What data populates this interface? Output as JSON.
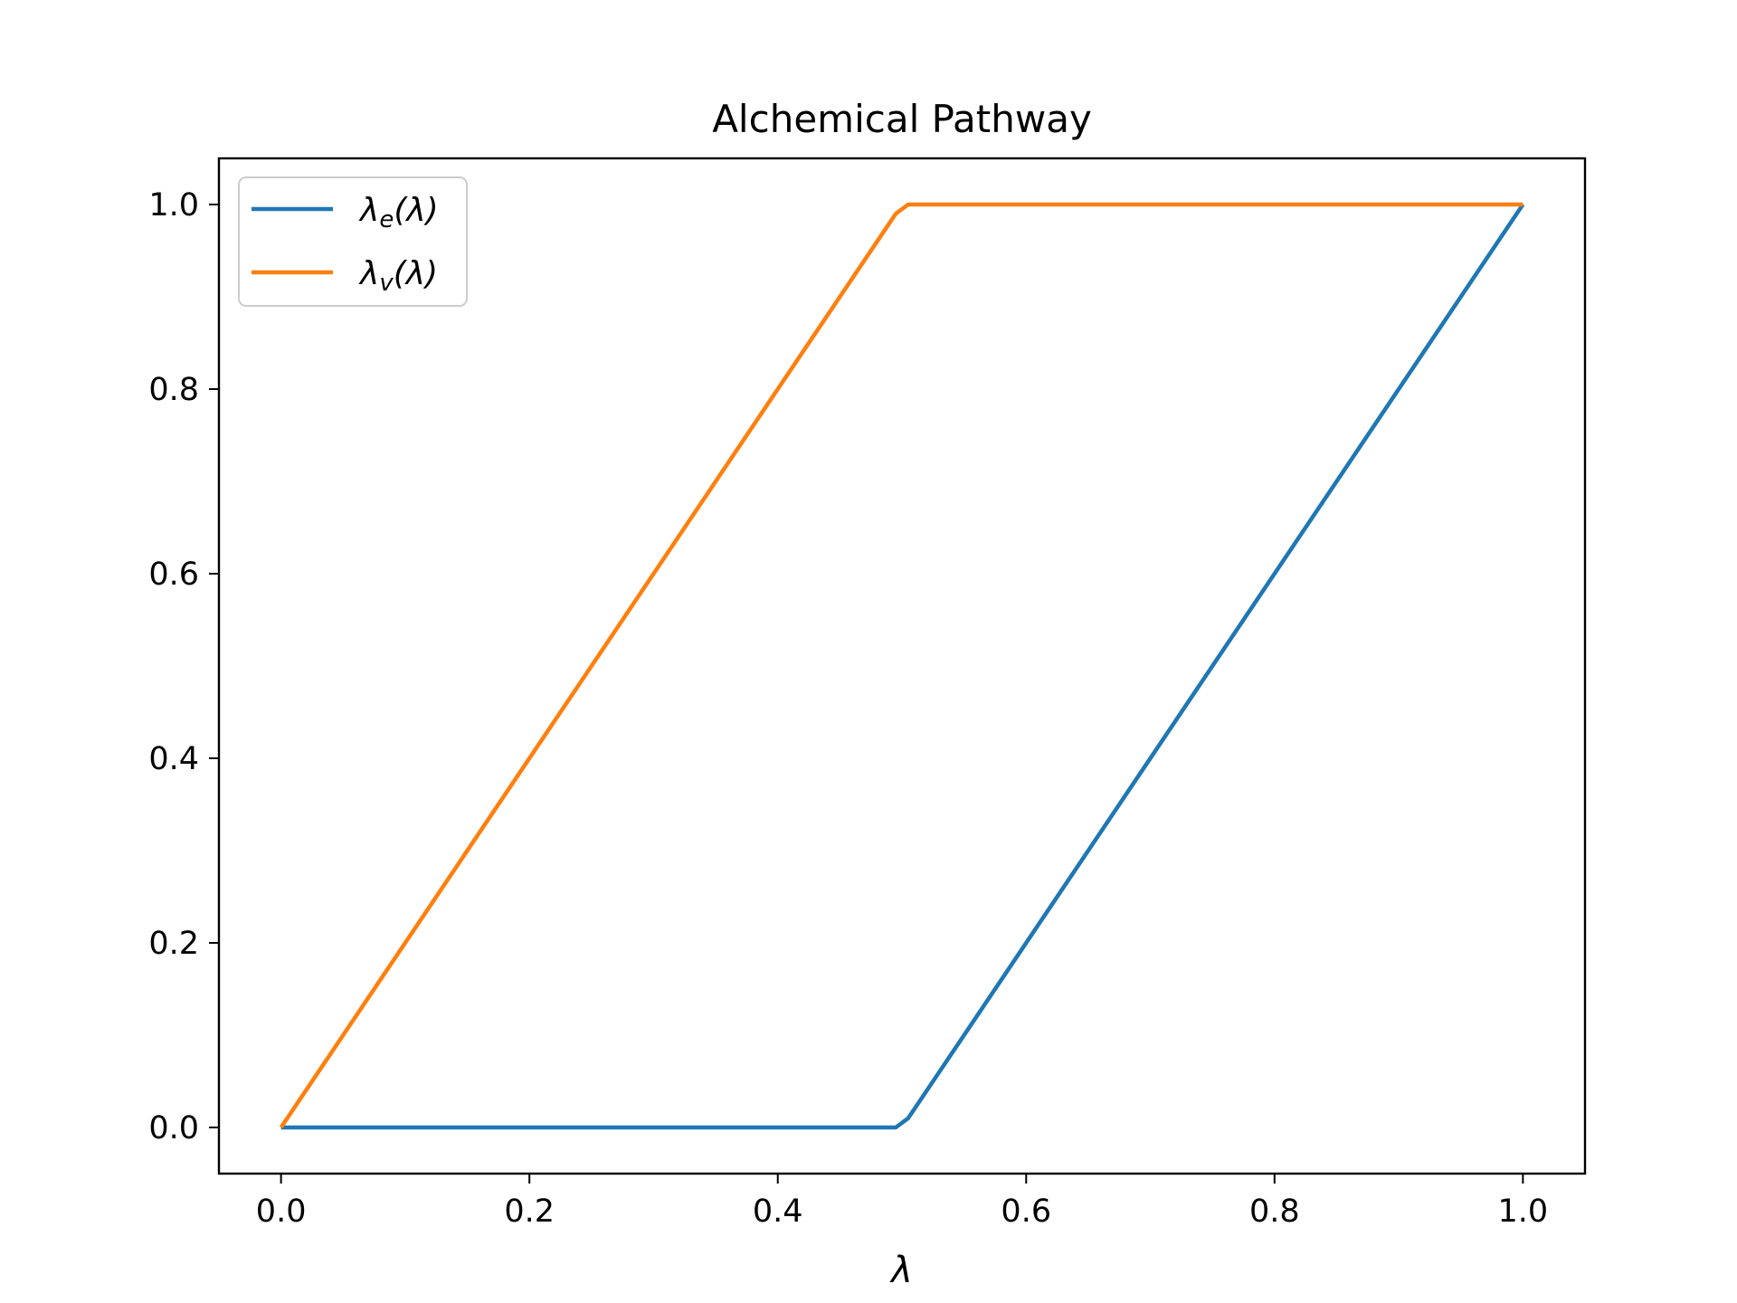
{
  "chart_data": {
    "type": "line",
    "title": "Alchemical Pathway",
    "xlabel": "λ",
    "ylabel": "",
    "xlim": [
      -0.05,
      1.05
    ],
    "ylim": [
      -0.05,
      1.05
    ],
    "xticks": [
      0.0,
      0.2,
      0.4,
      0.6,
      0.8,
      1.0
    ],
    "xtick_labels": [
      "0.0",
      "0.2",
      "0.4",
      "0.6",
      "0.8",
      "1.0"
    ],
    "yticks": [
      0.0,
      0.2,
      0.4,
      0.6,
      0.8,
      1.0
    ],
    "ytick_labels": [
      "0.0",
      "0.2",
      "0.4",
      "0.6",
      "0.8",
      "1.0"
    ],
    "grid": false,
    "legend_position": "upper-left",
    "series": [
      {
        "name_main": "λ",
        "name_sub": "e",
        "name_tail": "(λ)",
        "color": "#1f77b4",
        "x": [
          0.0,
          0.495,
          0.505,
          1.0
        ],
        "y": [
          0.0,
          0.0,
          0.01,
          1.0
        ]
      },
      {
        "name_main": "λ",
        "name_sub": "v",
        "name_tail": "(λ)",
        "color": "#ff7f0e",
        "x": [
          0.0,
          0.495,
          0.505,
          1.0
        ],
        "y": [
          0.0,
          0.99,
          1.0,
          1.0
        ]
      }
    ]
  }
}
